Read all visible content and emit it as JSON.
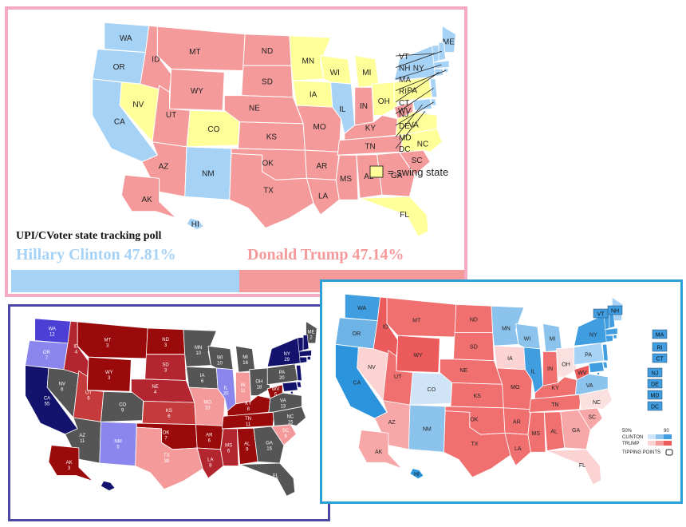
{
  "colors": {
    "clinton": "#a6d2f6",
    "trump": "#f59a9a",
    "swing": "#ffff99",
    "outline": "#ffffff"
  },
  "map1": {
    "title": "UPI/CVoter state tracking poll",
    "clinton_label": "Hillary Clinton 47.81%",
    "trump_label": "Donald Trump 47.14%",
    "clinton_pct": 47.81,
    "trump_pct": 47.14,
    "legend_label": "= swing state",
    "states": [
      {
        "s": "WA",
        "c": "clinton"
      },
      {
        "s": "OR",
        "c": "clinton"
      },
      {
        "s": "CA",
        "c": "clinton"
      },
      {
        "s": "NV",
        "c": "swing"
      },
      {
        "s": "ID",
        "c": "trump"
      },
      {
        "s": "MT",
        "c": "trump"
      },
      {
        "s": "WY",
        "c": "trump"
      },
      {
        "s": "UT",
        "c": "trump"
      },
      {
        "s": "CO",
        "c": "swing"
      },
      {
        "s": "AZ",
        "c": "trump"
      },
      {
        "s": "NM",
        "c": "clinton"
      },
      {
        "s": "ND",
        "c": "trump"
      },
      {
        "s": "SD",
        "c": "trump"
      },
      {
        "s": "NE",
        "c": "trump"
      },
      {
        "s": "KS",
        "c": "trump"
      },
      {
        "s": "OK",
        "c": "trump"
      },
      {
        "s": "TX",
        "c": "trump"
      },
      {
        "s": "MN",
        "c": "swing"
      },
      {
        "s": "IA",
        "c": "swing"
      },
      {
        "s": "MO",
        "c": "trump"
      },
      {
        "s": "AR",
        "c": "trump"
      },
      {
        "s": "LA",
        "c": "trump"
      },
      {
        "s": "WI",
        "c": "swing"
      },
      {
        "s": "IL",
        "c": "clinton"
      },
      {
        "s": "MI",
        "c": "swing"
      },
      {
        "s": "IN",
        "c": "trump"
      },
      {
        "s": "OH",
        "c": "swing"
      },
      {
        "s": "KY",
        "c": "trump"
      },
      {
        "s": "TN",
        "c": "trump"
      },
      {
        "s": "MS",
        "c": "trump"
      },
      {
        "s": "AL",
        "c": "trump"
      },
      {
        "s": "GA",
        "c": "trump"
      },
      {
        "s": "FL",
        "c": "swing"
      },
      {
        "s": "SC",
        "c": "trump"
      },
      {
        "s": "NC",
        "c": "swing"
      },
      {
        "s": "VA",
        "c": "swing"
      },
      {
        "s": "WV",
        "c": "trump"
      },
      {
        "s": "PA",
        "c": "swing"
      },
      {
        "s": "NY",
        "c": "clinton"
      },
      {
        "s": "ME",
        "c": "clinton"
      },
      {
        "s": "AK",
        "c": "trump"
      },
      {
        "s": "HI",
        "c": "clinton"
      }
    ],
    "east_labels": [
      "VT",
      "NH",
      "MA",
      "RI",
      "CT",
      "NJ",
      "DE",
      "MD",
      "DC"
    ]
  },
  "map2": {
    "states": [
      {
        "s": "WA",
        "n": "12"
      },
      {
        "s": "OR",
        "n": "7"
      },
      {
        "s": "CA",
        "n": "55"
      },
      {
        "s": "NV",
        "n": "6"
      },
      {
        "s": "ID",
        "n": "4"
      },
      {
        "s": "MT",
        "n": "3"
      },
      {
        "s": "WY",
        "n": "3"
      },
      {
        "s": "UT",
        "n": "6"
      },
      {
        "s": "CO",
        "n": "9"
      },
      {
        "s": "AZ",
        "n": "11"
      },
      {
        "s": "NM",
        "n": "5"
      },
      {
        "s": "ND",
        "n": "3"
      },
      {
        "s": "SD",
        "n": "3"
      },
      {
        "s": "NE",
        "n": "4"
      },
      {
        "s": "KS",
        "n": "6"
      },
      {
        "s": "OK",
        "n": "7"
      },
      {
        "s": "TX",
        "n": "38"
      },
      {
        "s": "MN",
        "n": "10"
      },
      {
        "s": "IA",
        "n": "6"
      },
      {
        "s": "MO",
        "n": "10"
      },
      {
        "s": "AR",
        "n": "6"
      },
      {
        "s": "LA",
        "n": "8"
      },
      {
        "s": "WI",
        "n": "10"
      },
      {
        "s": "IL",
        "n": "20"
      },
      {
        "s": "MI",
        "n": "16"
      },
      {
        "s": "IN",
        "n": "11"
      },
      {
        "s": "OH",
        "n": "18"
      },
      {
        "s": "KY",
        "n": "8"
      },
      {
        "s": "TN",
        "n": "11"
      },
      {
        "s": "MS",
        "n": "6"
      },
      {
        "s": "AL",
        "n": "9"
      },
      {
        "s": "GA",
        "n": "16"
      },
      {
        "s": "FL",
        "n": "29"
      },
      {
        "s": "SC",
        "n": "9"
      },
      {
        "s": "NC",
        "n": "15"
      },
      {
        "s": "VA",
        "n": "13"
      },
      {
        "s": "WV",
        "n": "5"
      },
      {
        "s": "PA",
        "n": "20"
      },
      {
        "s": "NY",
        "n": "29"
      },
      {
        "s": "ME",
        "n": "2"
      },
      {
        "s": "AK",
        "n": "3"
      }
    ]
  },
  "map3": {
    "legend_clinton": "CLINTON",
    "legend_trump": "TRUMP",
    "legend_50": "50%",
    "legend_90": "90",
    "tipping_label": "TIPPING POINTS",
    "states": [
      "WA",
      "OR",
      "CA",
      "NV",
      "ID",
      "MT",
      "WY",
      "UT",
      "CO",
      "AZ",
      "NM",
      "ND",
      "SD",
      "NE",
      "KS",
      "OK",
      "TX",
      "MN",
      "IA",
      "MO",
      "AR",
      "LA",
      "WI",
      "IL",
      "MI",
      "IN",
      "OH",
      "KY",
      "TN",
      "MS",
      "AL",
      "GA",
      "FL",
      "SC",
      "NC",
      "VA",
      "WV",
      "PA",
      "NY",
      "ME",
      "AK",
      "HI"
    ],
    "east_labels": [
      "VT",
      "NH",
      "MA",
      "RI",
      "CT",
      "NJ",
      "DE",
      "MD",
      "DC"
    ]
  }
}
